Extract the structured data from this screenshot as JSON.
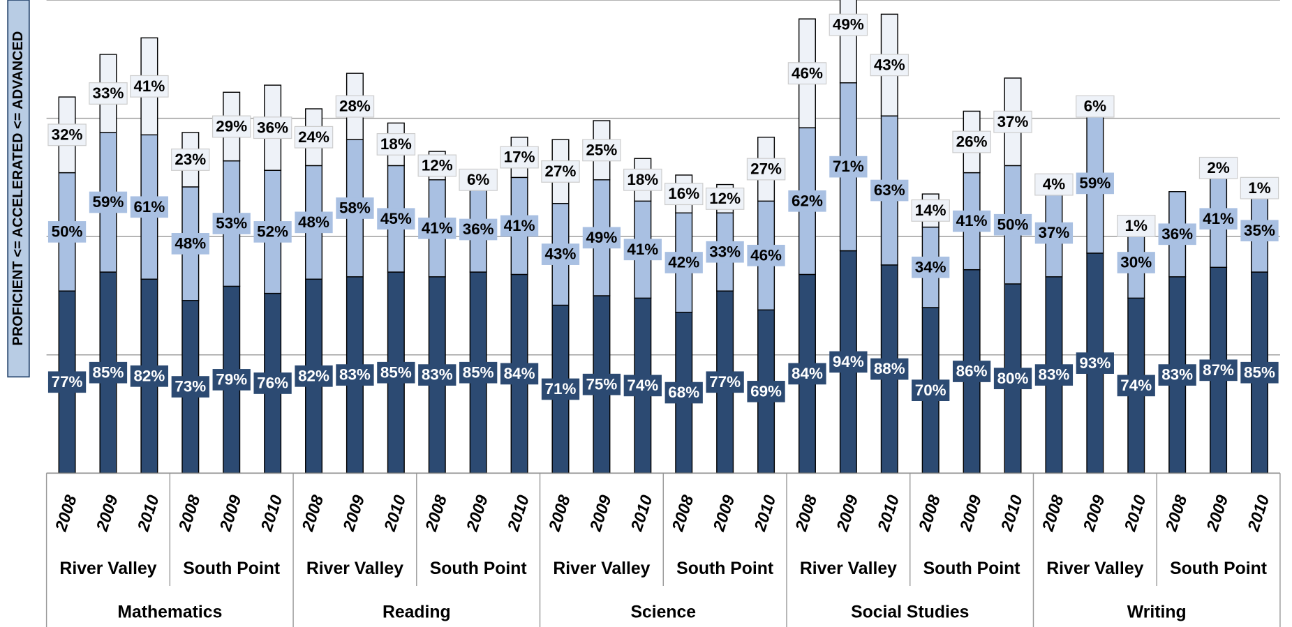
{
  "chart_data": {
    "type": "stacked_bar",
    "axis_title": "PROFICIENT <= ACCELERATED <= ADVANCED",
    "categories": [
      "2008",
      "2009",
      "2010",
      "2008",
      "2009",
      "2010",
      "2008",
      "2009",
      "2010",
      "2008",
      "2009",
      "2010",
      "2008",
      "2009",
      "2010",
      "2008",
      "2009",
      "2010",
      "2008",
      "2009",
      "2010",
      "2008",
      "2009",
      "2010",
      "2008",
      "2009",
      "2010",
      "2008",
      "2009",
      "2010"
    ],
    "groups": [
      "River Valley",
      "South Point",
      "River Valley",
      "South Point",
      "River Valley",
      "South Point",
      "River Valley",
      "South Point",
      "River Valley",
      "South Point"
    ],
    "subjects": [
      "Mathematics",
      "Reading",
      "Science",
      "Social Studies",
      "Writing"
    ],
    "ylim": [
      0,
      200
    ],
    "yticks": [
      0,
      50,
      100,
      150,
      200
    ],
    "grid": true,
    "series": [
      {
        "color": "#2c4a72",
        "label_color": "#ffffff",
        "values": [
          77,
          85,
          82,
          73,
          79,
          76,
          82,
          83,
          85,
          83,
          85,
          84,
          71,
          75,
          74,
          68,
          77,
          69,
          84,
          94,
          88,
          70,
          86,
          80,
          83,
          93,
          74,
          83,
          87,
          85
        ],
        "value_labels": [
          "77%",
          "85%",
          "82%",
          "73%",
          "79%",
          "76%",
          "82%",
          "83%",
          "85%",
          "83%",
          "85%",
          "84%",
          "71%",
          "75%",
          "74%",
          "68%",
          "77%",
          "69%",
          "84%",
          "94%",
          "88%",
          "70%",
          "86%",
          "80%",
          "83%",
          "93%",
          "74%",
          "83%",
          "87%",
          "85%"
        ]
      },
      {
        "color": "#a9c0e2",
        "label_color": "#000000",
        "values": [
          50,
          59,
          61,
          48,
          53,
          52,
          48,
          58,
          45,
          41,
          36,
          41,
          43,
          49,
          41,
          42,
          33,
          46,
          62,
          71,
          63,
          34,
          41,
          50,
          37,
          59,
          30,
          36,
          41,
          35
        ],
        "value_labels": [
          "50%",
          "59%",
          "61%",
          "48%",
          "53%",
          "52%",
          "48%",
          "58%",
          "45%",
          "41%",
          "36%",
          "41%",
          "43%",
          "49%",
          "41%",
          "42%",
          "33%",
          "46%",
          "62%",
          "71%",
          "63%",
          "34%",
          "41%",
          "50%",
          "37%",
          "59%",
          "30%",
          "36%",
          "41%",
          "35%"
        ]
      },
      {
        "color": "#eef2f8",
        "label_color": "#000000",
        "values": [
          32,
          33,
          41,
          23,
          29,
          36,
          24,
          28,
          18,
          12,
          6,
          17,
          27,
          25,
          18,
          16,
          12,
          27,
          46,
          49,
          43,
          14,
          26,
          37,
          4,
          6,
          1,
          null,
          2,
          1
        ],
        "value_labels": [
          "32%",
          "33%",
          "41%",
          "23%",
          "29%",
          "36%",
          "24%",
          "28%",
          "18%",
          "12%",
          "6%",
          "17%",
          "27%",
          "25%",
          "18%",
          "16%",
          "12%",
          "27%",
          "46%",
          "49%",
          "43%",
          "14%",
          "26%",
          "37%",
          "4%",
          "6%",
          "1%",
          null,
          "2%",
          "1%"
        ]
      }
    ]
  }
}
